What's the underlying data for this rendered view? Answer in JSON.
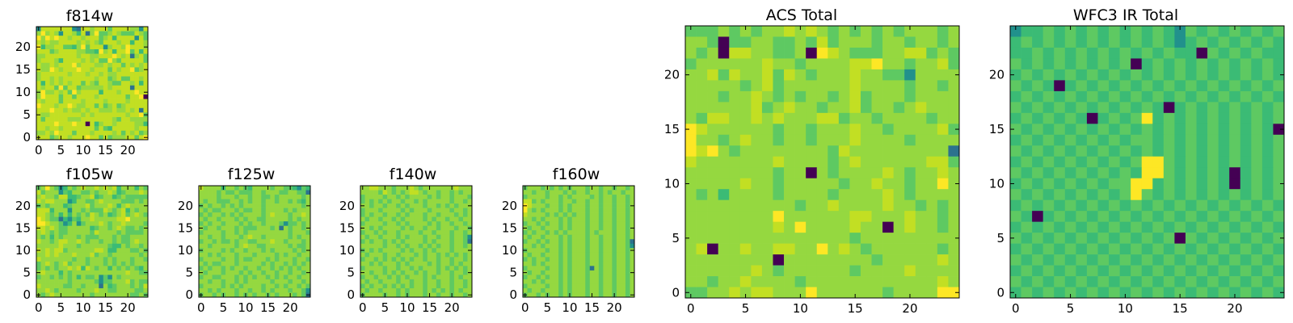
{
  "colormap": [
    "#440154",
    "#2c728e",
    "#21918c",
    "#3bbb75",
    "#5ec962",
    "#95d840",
    "#c2df23",
    "#fde725"
  ],
  "chart_data": [
    {
      "type": "heatmap",
      "title": "f814w",
      "xticks": [
        "0",
        "5",
        "10",
        "15",
        "20"
      ],
      "yticks": [
        "0",
        "5",
        "10",
        "15",
        "20"
      ],
      "xlim": [
        -0.5,
        24.5
      ],
      "ylim": [
        -0.5,
        24.5
      ],
      "grid": false,
      "rows": [
        "2666666621665666466665526",
        "5756526653615744565444654",
        "7576766566566645636666264",
        "6565566665656546665663665",
        "7355664435746662566576665",
        "6664566665544375636674636",
        "5566666665665566676561564",
        "5666536666565644754666664",
        "6556566675666556566465656",
        "6557656667665666465667456",
        "5666666566656656556666666",
        "5665656666666566456446656",
        "6365656566465466544665636",
        "6566474664555556566661666",
        "5755656475666636665666766",
        "5766646646666566666646670",
        "6566646666566665666656666",
        "7666566765566464564566666",
        "6667665655656655565565616",
        "6556666666565666666656674",
        "6466666555666666654665555",
        "6666766676606356656666553",
        "6656656666666464366666566",
        "5565766646665666656465645",
        "6664566566676646455566467"
      ]
    },
    {
      "type": "heatmap",
      "title": "f105w",
      "xticks": [
        "0",
        "5",
        "10",
        "15",
        "20"
      ],
      "yticks": [
        "0",
        "5",
        "10",
        "15",
        "20"
      ],
      "xlim": [
        -0.5,
        24.5
      ],
      "ylim": [
        -0.5,
        24.5
      ],
      "grid": false,
      "rows": [
        "4575423545655656563555354",
        "6455524355445455653455565",
        "5655466334556345534544444",
        "6566555235544565555444545",
        "4545553455564555653565555",
        "6663555255454446545635455",
        "6654535354546545345645654",
        "7654413243556555556675555",
        "7765542352455565455655554",
        "6656544555553455456544545",
        "5654544555554655554544445",
        "5453545554544455545445555",
        "6554566556545545545445655",
        "5555565554555555433545545",
        "6565664555555665335554454",
        "5565655565556455455555545",
        "6555555545545554545554554",
        "4565456455545554545454555",
        "4545455656365455354545435",
        "5655535455555555555565544",
        "4554545453544524254555555",
        "5555555455555424455564544",
        "6555554455455515345554546",
        "5565455554555655445555445",
        "5456555555554555555554454"
      ]
    },
    {
      "type": "heatmap",
      "title": "f125w",
      "xticks": [
        "0",
        "5",
        "10",
        "15",
        "20"
      ],
      "yticks": [
        "0",
        "5",
        "10",
        "15",
        "20"
      ],
      "xlim": [
        -0.5,
        24.5
      ],
      "ylim": [
        -0.5,
        24.5
      ],
      "grid": false,
      "rows": [
        "6555535545435555455443243",
        "5555454454445545554455441",
        "5555455545545544545555545",
        "5455444554545545545545435",
        "4545545454555545555555545",
        "5454455545445545555454555",
        "4545545454555545655545565",
        "5455455545455445555545455",
        "4545545554545545554244545",
        "5455455545444555451545545",
        "4555545545455555555545554",
        "5545545554565545555545455",
        "4554544545544555655455545",
        "5545555545655445555545445",
        "4555545455455545455554545",
        "5545455545554555545455455",
        "4555545545445554545554554",
        "5454455545555545455454545",
        "4545545455455455454545455",
        "5455545554545545545545545",
        "4554455545454554545455455",
        "5545545545455555455545545",
        "4555545454555545545455454",
        "5545455545545545455545542",
        "4554545545454554545554541"
      ]
    },
    {
      "type": "heatmap",
      "title": "f140w",
      "xticks": [
        "0",
        "5",
        "10",
        "15",
        "20"
      ],
      "yticks": [
        "0",
        "5",
        "10",
        "15",
        "20"
      ],
      "xlim": [
        -0.5,
        24.5
      ],
      "ylim": [
        -0.5,
        24.5
      ],
      "grid": false,
      "rows": [
        "5566555455565455555556555",
        "5555465454566545545545455",
        "4555545545455554545545554",
        "4545454554554545555545545",
        "5545545545455545545454555",
        "4555455554545554555545545",
        "4545545545455545545554545",
        "5455455454555545455455455",
        "4555545545455554545545545",
        "5545455554545545545554554",
        "4554545545555455455545545",
        "5455455545455545545545542",
        "4545545454555545455545541",
        "5555545545455454545545545",
        "4545455554545545455545555",
        "5455545545554545545454545",
        "4554545454545545545545545",
        "5545455545455554545545455",
        "4555545545545455545454545",
        "5545545454554545545545545",
        "4554554545455545455545455",
        "5455455545545545545545545",
        "4545545454545545545545545",
        "5455455545455545454545455",
        "4555545545455545545545545"
      ]
    },
    {
      "type": "heatmap",
      "title": "f160w",
      "xticks": [
        "0",
        "5",
        "10",
        "15",
        "20"
      ],
      "yticks": [
        "0",
        "5",
        "10",
        "15",
        "20"
      ],
      "xlim": [
        -0.5,
        24.5
      ],
      "ylim": [
        -0.5,
        24.5
      ],
      "grid": false,
      "rows": [
        "4555454545455545545545545",
        "5545545554545545545455455",
        "4555545545455554545545545",
        "6645455545545545545545545",
        "7655545545455545545545545",
        "7545455545455545545545545",
        "6555545454545545545545545",
        "5545455545455545545545545",
        "4554545545455545545545545",
        "5455455545455545545545545",
        "4545545454555545455545545",
        "5455455545455545545545545",
        "4554545545455545545545541",
        "5545455545455545545545542",
        "4555545545455545545545545",
        "5455455545455545545545545",
        "4545545545455545545545545",
        "5545455545455545545545545",
        "4555545545455541545545545",
        "5455455545455545545545545",
        "4554545545455545545545545",
        "5545455545455545545545545",
        "4555545545455545545545545",
        "5455455545455545545545545",
        "4554545545455545545545545"
      ]
    },
    {
      "type": "heatmap",
      "title": "ACS Total",
      "xticks": [
        "0",
        "5",
        "10",
        "15",
        "20"
      ],
      "yticks": [
        "0",
        "5",
        "10",
        "15",
        "20"
      ],
      "xlim": [
        -0.5,
        24.5
      ],
      "ylim": [
        -0.5,
        24.5
      ],
      "grid": false,
      "rows": [
        "4445454556565454545455545",
        "5540445544546455545545545",
        "5450665544507654445566454",
        "4555555655455556675545564",
        "5564655646545556554425555",
        "5555545645555556555545545",
        "5554556545455456455545555",
        "5555556456554556455456555",
        "5466556565556645545555455",
        "7655555545545556554555564",
        "7554565545545556555545555",
        "7675455555555465555555551",
        "6555555565555456555555664",
        "5555555545505455556545565",
        "5555565545555545565545575",
        "5453555545555455556545555",
        "5555555555455655556554545",
        "5555555575555556655565545",
        "5555555565755556550565545",
        "5555555555555554555555555",
        "5605565566557565455555545",
        "5555555505555555545555565",
        "5555556545555554555565555",
        "5545565555455555555555565",
        "4455656655575555554555577"
      ]
    },
    {
      "type": "heatmap",
      "title": "WFC3 IR Total",
      "xticks": [
        "0",
        "5",
        "10",
        "15",
        "20"
      ],
      "yticks": [
        "0",
        "5",
        "10",
        "15",
        "20"
      ],
      "xlim": [
        -0.5,
        24.5
      ],
      "ylim": [
        -0.5,
        24.5
      ],
      "grid": false,
      "rows": [
        "2334343434343432434343434",
        "3434343434343432343434343",
        "3343434343434343304343433",
        "4343434343403434343434343",
        "3434343434343434343434343",
        "4343034343434343434343434",
        "3434343434343434343434343",
        "4343434343434303434343434",
        "3434343034347343434343434",
        "4343434343434343434343430",
        "3434343434344343434343434",
        "4343434343434343434343434",
        "3434343434347743434343434",
        "4343434343437743434303434",
        "3434343434477343434303434",
        "4343434343474343434343434",
        "3434343434343434343434343",
        "4303434343434343434343434",
        "3434343434343434343434343",
        "4343434343434340434343434",
        "3434343434343434343434343",
        "4343434343434343434343434",
        "3434343434343434343434343",
        "4343434343434343434343434",
        "3434343434343434343434343"
      ]
    }
  ]
}
